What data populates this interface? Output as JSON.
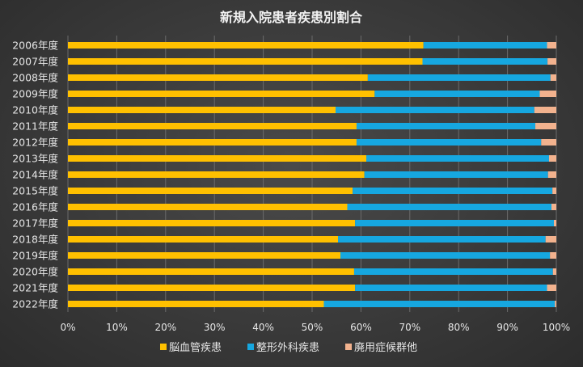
{
  "colors": {
    "series": [
      "#FFC000",
      "#16A7E0",
      "#F2B28E"
    ],
    "grid": "#6b6b6b",
    "text": "#e6e6e6",
    "title": "#f2f2f2"
  },
  "chart_data": {
    "type": "bar",
    "orientation": "horizontal",
    "stacked": "percent",
    "title": "新規入院患者疾患別割合",
    "categories": [
      "2006年度",
      "2007年度",
      "2008年度",
      "2009年度",
      "2010年度",
      "2011年度",
      "2012年度",
      "2013年度",
      "2014年度",
      "2015年度",
      "2016年度",
      "2017年度",
      "2018年度",
      "2019年度",
      "2020年度",
      "2021年度",
      "2022年度"
    ],
    "series": [
      {
        "name": "脳血管疾患",
        "values": [
          72.8,
          72.6,
          61.4,
          62.8,
          54.8,
          59.1,
          59.1,
          61.1,
          60.7,
          58.3,
          57.2,
          58.8,
          55.3,
          55.8,
          58.6,
          58.8,
          52.4
        ]
      },
      {
        "name": "整形外科疾患",
        "values": [
          25.3,
          25.6,
          37.4,
          33.8,
          40.7,
          36.6,
          37.8,
          37.4,
          37.6,
          40.9,
          41.8,
          40.7,
          42.5,
          42.9,
          40.7,
          39.3,
          47.3
        ]
      },
      {
        "name": "廃用症候群他",
        "values": [
          1.9,
          1.8,
          1.2,
          3.4,
          4.5,
          4.3,
          3.1,
          1.5,
          1.7,
          0.8,
          1.0,
          0.5,
          2.2,
          1.3,
          0.7,
          1.9,
          0.3
        ]
      }
    ],
    "xlim": [
      0,
      100
    ],
    "xticks": [
      "0%",
      "10%",
      "20%",
      "30%",
      "40%",
      "50%",
      "60%",
      "70%",
      "80%",
      "90%",
      "100%"
    ],
    "grid": "vertical",
    "legend": "bottom"
  }
}
